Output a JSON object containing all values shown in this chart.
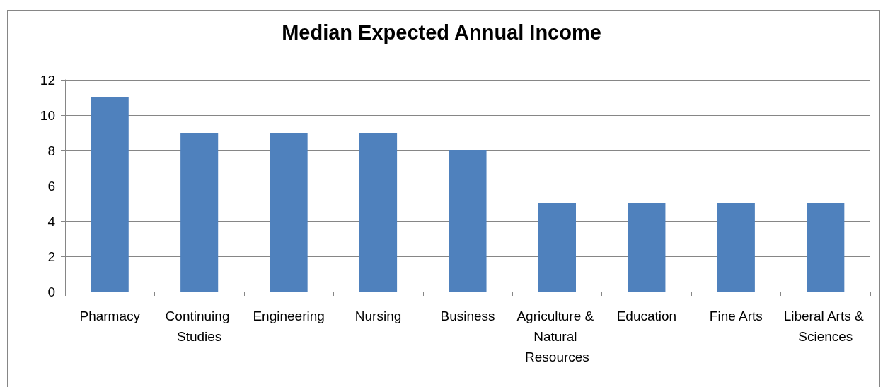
{
  "chart_data": {
    "type": "bar",
    "title": "Median Expected Annual Income",
    "categories": [
      "Pharmacy",
      "Continuing Studies",
      "Engineering",
      "Nursing",
      "Business",
      "Agriculture & Natural Resources",
      "Education",
      "Fine Arts",
      "Liberal Arts & Sciences"
    ],
    "values": [
      11,
      9,
      9,
      9,
      8,
      5,
      5,
      5,
      5
    ],
    "color": "#4f81bd",
    "ylim": [
      0,
      12
    ],
    "yticks": [
      0,
      2,
      4,
      6,
      8,
      10,
      12
    ],
    "grid": "y"
  }
}
